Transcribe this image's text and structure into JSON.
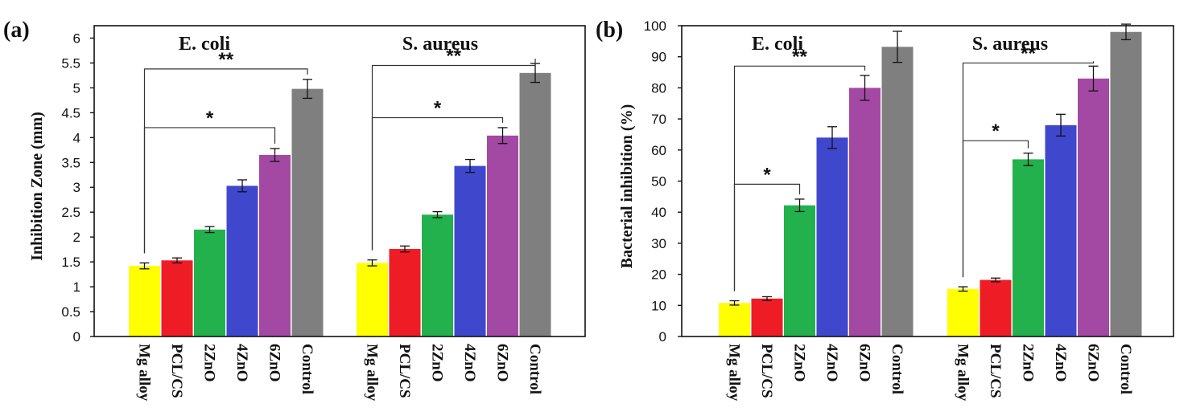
{
  "chart_data": [
    {
      "type": "bar",
      "panel_label": "(a)",
      "title": "",
      "xlabel": "",
      "ylabel": "Inhibition Zone (mm)",
      "ylim": [
        0,
        6.25
      ],
      "yticks": [
        "0",
        "0.5",
        "1",
        "1.5",
        "2",
        "2.5",
        "3",
        "3.5",
        "4",
        "4.5",
        "5",
        "5.5",
        "6"
      ],
      "ytick_values": [
        0,
        0.5,
        1,
        1.5,
        2,
        2.5,
        3,
        3.5,
        4,
        4.5,
        5,
        5.5,
        6
      ],
      "categories": [
        "Mg alloy",
        "PCL/CS",
        "2ZnO",
        "4ZnO",
        "6ZnO",
        "Control"
      ],
      "colors": [
        "#ffff00",
        "#ee1c25",
        "#22b14c",
        "#3f48cc",
        "#a349a4",
        "#7f7f7f"
      ],
      "groups": [
        {
          "name": "E. coli",
          "values": [
            1.42,
            1.53,
            2.15,
            3.03,
            3.65,
            4.98
          ],
          "errors": [
            0.06,
            0.05,
            0.06,
            0.12,
            0.13,
            0.19
          ],
          "brackets": [
            {
              "from": 0,
              "to": 4,
              "label": "*",
              "level": 4.2
            },
            {
              "from": 0,
              "to": 5,
              "label": "**",
              "level": 5.38
            }
          ]
        },
        {
          "name": "S. aureus",
          "values": [
            1.48,
            1.76,
            2.45,
            3.43,
            4.04,
            5.3
          ],
          "errors": [
            0.06,
            0.06,
            0.06,
            0.13,
            0.16,
            0.19
          ],
          "brackets": [
            {
              "from": 0,
              "to": 4,
              "label": "*",
              "level": 4.4
            },
            {
              "from": 0,
              "to": 5,
              "label": "**",
              "level": 5.45
            }
          ]
        }
      ]
    },
    {
      "type": "bar",
      "panel_label": "(b)",
      "title": "",
      "xlabel": "",
      "ylabel": "Bacterial inhibition (%)",
      "ylim": [
        0,
        100
      ],
      "yticks": [
        "0",
        "10",
        "20",
        "30",
        "40",
        "50",
        "60",
        "70",
        "80",
        "90",
        "100"
      ],
      "ytick_values": [
        0,
        10,
        20,
        30,
        40,
        50,
        60,
        70,
        80,
        90,
        100
      ],
      "categories": [
        "Mg alloy",
        "PCL/CS",
        "2ZnO",
        "4ZnO",
        "6ZnO",
        "Control"
      ],
      "colors": [
        "#ffff00",
        "#ee1c25",
        "#22b14c",
        "#3f48cc",
        "#a349a4",
        "#7f7f7f"
      ],
      "groups": [
        {
          "name": "E. coli",
          "values": [
            10.8,
            12.2,
            42.2,
            64,
            80,
            93.2
          ],
          "errors": [
            0.7,
            0.6,
            2,
            3.5,
            4,
            5
          ],
          "brackets": [
            {
              "from": 0,
              "to": 2,
              "label": "*",
              "level": 49
            },
            {
              "from": 0,
              "to": 4,
              "label": "**",
              "level": 87
            }
          ]
        },
        {
          "name": "S. aureus",
          "values": [
            15.3,
            18.2,
            57,
            68,
            83,
            98
          ],
          "errors": [
            0.7,
            0.6,
            2,
            3.5,
            4,
            2.5
          ],
          "brackets": [
            {
              "from": 0,
              "to": 2,
              "label": "*",
              "level": 63
            },
            {
              "from": 0,
              "to": 4,
              "label": "**",
              "level": 88
            }
          ]
        }
      ]
    }
  ]
}
